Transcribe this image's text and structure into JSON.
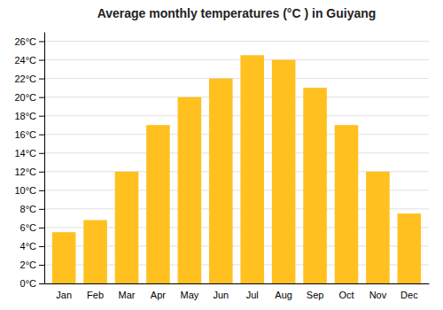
{
  "chart_data": {
    "type": "bar",
    "title": "Average monthly temperatures (°C ) in Guiyang",
    "categories": [
      "Jan",
      "Feb",
      "Mar",
      "Apr",
      "May",
      "Jun",
      "Jul",
      "Aug",
      "Sep",
      "Oct",
      "Nov",
      "Dec"
    ],
    "values": [
      5.5,
      6.8,
      12.0,
      17.0,
      20.0,
      22.0,
      24.5,
      24.0,
      21.0,
      17.0,
      12.0,
      7.5
    ],
    "color": "#FFC020",
    "ylim": [
      0,
      27
    ],
    "yticks": [
      {
        "value": 0,
        "label": "0°C"
      },
      {
        "value": 2,
        "label": "2°C"
      },
      {
        "value": 4,
        "label": "4°C"
      },
      {
        "value": 6,
        "label": "6°C"
      },
      {
        "value": 8,
        "label": "8°C"
      },
      {
        "value": 10,
        "label": "10°C"
      },
      {
        "value": 12,
        "label": "12°C"
      },
      {
        "value": 14,
        "label": "14°C"
      },
      {
        "value": 16,
        "label": "16°C"
      },
      {
        "value": 18,
        "label": "18°C"
      },
      {
        "value": 20,
        "label": "20°C"
      },
      {
        "value": 22,
        "label": "22°C"
      },
      {
        "value": 24,
        "label": "24°C"
      },
      {
        "value": 26,
        "label": "26°C"
      }
    ],
    "grid": true
  }
}
